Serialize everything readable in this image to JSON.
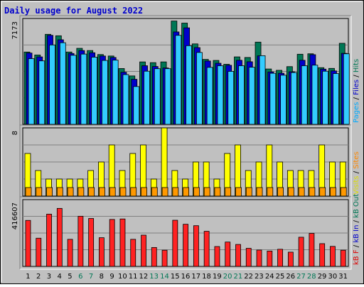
{
  "chart_data": {
    "type": "bar",
    "title": "Daily usage for August 2022",
    "x": [
      "1",
      "2",
      "3",
      "4",
      "5",
      "6",
      "7",
      "8",
      "9",
      "10",
      "11",
      "12",
      "13",
      "14",
      "15",
      "16",
      "17",
      "18",
      "19",
      "20",
      "21",
      "22",
      "23",
      "24",
      "25",
      "26",
      "27",
      "28",
      "29",
      "30",
      "31"
    ],
    "weekend_days": [
      "6",
      "7",
      "13",
      "14",
      "20",
      "21",
      "27",
      "28"
    ],
    "panels": [
      {
        "id": "hits",
        "max_label": "7173",
        "ymax": 7173,
        "legend": [
          {
            "label": "Pages",
            "color": "#00aaff"
          },
          {
            "label": "Files",
            "color": "#0000cc"
          },
          {
            "label": "Hits",
            "color": "#007755"
          }
        ],
        "series": [
          {
            "name": "Hits",
            "color": "#007755",
            "values": [
              4900,
              4700,
              6100,
              6000,
              4900,
              5150,
              5000,
              4730,
              4630,
              3780,
              3280,
              4230,
              4180,
              4230,
              7000,
              6860,
              5450,
              4400,
              4330,
              4070,
              4570,
              4530,
              5570,
              3750,
              3660,
              3910,
              4750,
              4780,
              3840,
              3790,
              5490
            ]
          },
          {
            "name": "Files",
            "color": "#0000cc",
            "values": [
              4830,
              4570,
              6030,
              5730,
              4800,
              5000,
              4850,
              4630,
              4530,
              3530,
              3050,
              3970,
              3920,
              3820,
              6260,
              6540,
              5200,
              4290,
              4140,
              4000,
              4340,
              4240,
              4640,
              3550,
              3460,
              3560,
              4340,
              4720,
              3740,
              3620,
              4810
            ]
          },
          {
            "name": "Pages",
            "color": "#33ccff",
            "values": [
              4450,
              4300,
              5380,
              5530,
              4680,
              4760,
              4550,
              4330,
              4350,
              3370,
              2560,
              3600,
              3770,
              3770,
              6030,
              5330,
              4870,
              3860,
              3970,
              3590,
              3970,
              3870,
              4650,
              3460,
              3330,
              3510,
              3970,
              4010,
              3600,
              3440,
              4780
            ]
          }
        ]
      },
      {
        "id": "visits",
        "max_label": "8",
        "ymax": 8,
        "legend": [
          {
            "label": "Visits",
            "color": "#dddd00"
          },
          {
            "label": "Sites",
            "color": "#ff8800"
          }
        ],
        "series": [
          {
            "name": "Visits",
            "color": "#ffff00",
            "values": [
              5,
              3,
              2,
              2,
              2,
              2,
              3,
              4,
              6,
              3,
              5,
              6,
              2,
              8,
              3,
              2,
              4,
              4,
              2,
              5,
              6,
              3,
              4,
              6,
              4,
              3,
              3,
              3,
              6,
              4,
              4
            ]
          },
          {
            "name": "Sites",
            "color": "#ff9900",
            "values": [
              1,
              1,
              1,
              1,
              1,
              1,
              1,
              1,
              1,
              1,
              1,
              1,
              1,
              1,
              1,
              1,
              1,
              1,
              1,
              1,
              1,
              1,
              1,
              1,
              1,
              1,
              1,
              1,
              1,
              1,
              1
            ]
          }
        ]
      },
      {
        "id": "kbytes",
        "max_label": "416607",
        "ymax": 416607,
        "legend": [
          {
            "label": "kB F",
            "color": "#dd0000"
          },
          {
            "label": "kB In",
            "color": "#0000cc"
          },
          {
            "label": "kB Out",
            "color": "#007755"
          }
        ],
        "series": [
          {
            "name": "kB F",
            "color": "#ff2222",
            "values": [
              287000,
              176000,
              326000,
              362000,
              169000,
              313000,
              299000,
              179000,
              293000,
              296000,
              169000,
              195000,
              118000,
              101000,
              288000,
              263000,
              254000,
              219000,
              124000,
              152000,
              137000,
              113000,
              102000,
              96000,
              107000,
              89000,
              182000,
              206000,
              142000,
              125000,
              101000
            ]
          }
        ]
      }
    ]
  }
}
